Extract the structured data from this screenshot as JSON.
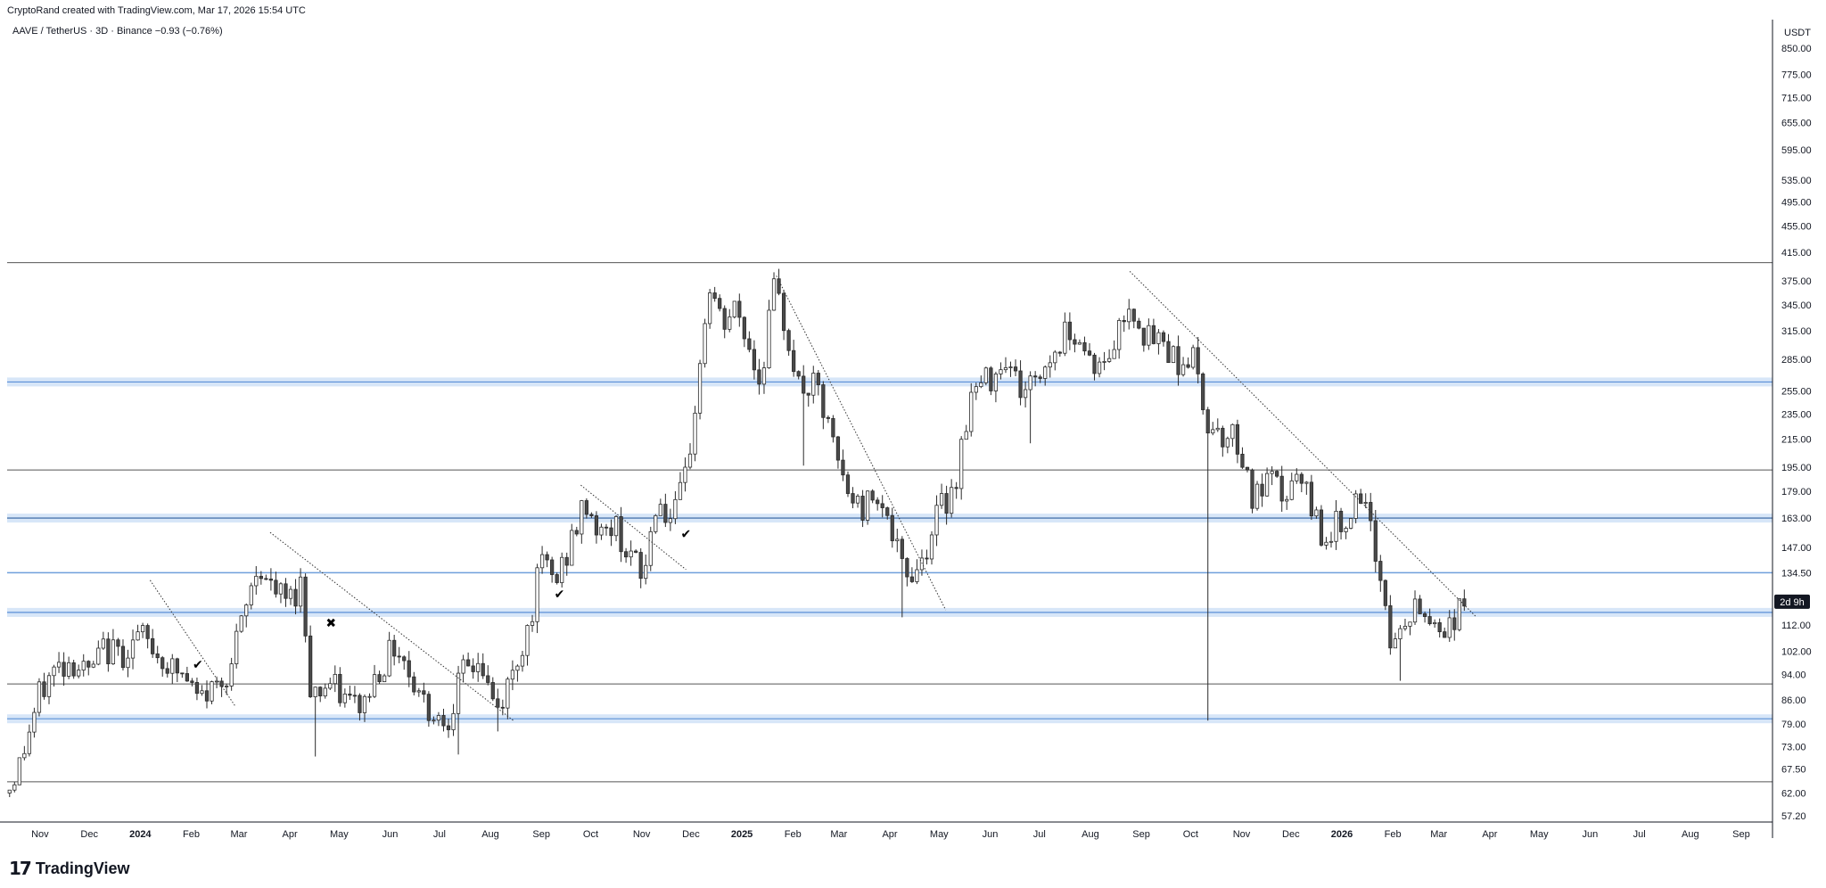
{
  "header": {
    "note": "CryptoRand created with TradingView.com, Mar 17, 2026 15:54 UTC"
  },
  "legend": {
    "text": "AAVE / TetherUS · 3D · Binance  −0.93 (−0.76%)"
  },
  "logo": {
    "mark": "17",
    "text": "TradingView"
  },
  "chart_data": {
    "type": "candlestick",
    "symbol": "AAVE / TetherUS",
    "timeframe": "3D",
    "exchange": "Binance",
    "change": "−0.93 (−0.76%)",
    "currency": "USDT",
    "y_scale": "log",
    "ylim": [
      56,
      940
    ],
    "y_ticks": [
      {
        "value": 850,
        "label": "850.00"
      },
      {
        "value": 775,
        "label": "775.00"
      },
      {
        "value": 715,
        "label": "715.00"
      },
      {
        "value": 655,
        "label": "655.00"
      },
      {
        "value": 595,
        "label": "595.00"
      },
      {
        "value": 535,
        "label": "535.00"
      },
      {
        "value": 495,
        "label": "495.00"
      },
      {
        "value": 455,
        "label": "455.00"
      },
      {
        "value": 415,
        "label": "415.00"
      },
      {
        "value": 375,
        "label": "375.00"
      },
      {
        "value": 345,
        "label": "345.00"
      },
      {
        "value": 315,
        "label": "315.00"
      },
      {
        "value": 285,
        "label": "285.00"
      },
      {
        "value": 255,
        "label": "255.00"
      },
      {
        "value": 235,
        "label": "235.00"
      },
      {
        "value": 215,
        "label": "215.00"
      },
      {
        "value": 195,
        "label": "195.00"
      },
      {
        "value": 179,
        "label": "179.00"
      },
      {
        "value": 163,
        "label": "163.00"
      },
      {
        "value": 147,
        "label": "147.00"
      },
      {
        "value": 134.5,
        "label": "134.50"
      },
      {
        "value": 112,
        "label": "112.00"
      },
      {
        "value": 102,
        "label": "102.00"
      },
      {
        "value": 94,
        "label": "94.00"
      },
      {
        "value": 86,
        "label": "86.00"
      },
      {
        "value": 79,
        "label": "79.00"
      },
      {
        "value": 73,
        "label": "73.00"
      },
      {
        "value": 67.5,
        "label": "67.50"
      },
      {
        "value": 62,
        "label": "62.00"
      },
      {
        "value": 57.2,
        "label": "57.20"
      }
    ],
    "price_tag": {
      "value": 121.5,
      "label": "2d 9h",
      "color": "#131722"
    },
    "x_ticks": [
      {
        "date": "2023-11-01",
        "label": "Nov",
        "year": false
      },
      {
        "date": "2023-12-01",
        "label": "Dec",
        "year": false
      },
      {
        "date": "2024-01-01",
        "label": "2024",
        "year": true
      },
      {
        "date": "2024-02-01",
        "label": "Feb",
        "year": false
      },
      {
        "date": "2024-03-01",
        "label": "Mar",
        "year": false
      },
      {
        "date": "2024-04-01",
        "label": "Apr",
        "year": false
      },
      {
        "date": "2024-05-01",
        "label": "May",
        "year": false
      },
      {
        "date": "2024-06-01",
        "label": "Jun",
        "year": false
      },
      {
        "date": "2024-07-01",
        "label": "Jul",
        "year": false
      },
      {
        "date": "2024-08-01",
        "label": "Aug",
        "year": false
      },
      {
        "date": "2024-09-01",
        "label": "Sep",
        "year": false
      },
      {
        "date": "2024-10-01",
        "label": "Oct",
        "year": false
      },
      {
        "date": "2024-11-01",
        "label": "Nov",
        "year": false
      },
      {
        "date": "2024-12-01",
        "label": "Dec",
        "year": false
      },
      {
        "date": "2025-01-01",
        "label": "2025",
        "year": true
      },
      {
        "date": "2025-02-01",
        "label": "Feb",
        "year": false
      },
      {
        "date": "2025-03-01",
        "label": "Mar",
        "year": false
      },
      {
        "date": "2025-04-01",
        "label": "Apr",
        "year": false
      },
      {
        "date": "2025-05-01",
        "label": "May",
        "year": false
      },
      {
        "date": "2025-06-01",
        "label": "Jun",
        "year": false
      },
      {
        "date": "2025-07-01",
        "label": "Jul",
        "year": false
      },
      {
        "date": "2025-08-01",
        "label": "Aug",
        "year": false
      },
      {
        "date": "2025-09-01",
        "label": "Sep",
        "year": false
      },
      {
        "date": "2025-10-01",
        "label": "Oct",
        "year": false
      },
      {
        "date": "2025-11-01",
        "label": "Nov",
        "year": false
      },
      {
        "date": "2025-12-01",
        "label": "Dec",
        "year": false
      },
      {
        "date": "2026-01-01",
        "label": "2026",
        "year": true
      },
      {
        "date": "2026-02-01",
        "label": "Feb",
        "year": false
      },
      {
        "date": "2026-03-01",
        "label": "Mar",
        "year": false
      },
      {
        "date": "2026-04-01",
        "label": "Apr",
        "year": false
      },
      {
        "date": "2026-05-01",
        "label": "May",
        "year": false
      },
      {
        "date": "2026-06-01",
        "label": "Jun",
        "year": false
      },
      {
        "date": "2026-07-01",
        "label": "Jul",
        "year": false
      },
      {
        "date": "2026-08-01",
        "label": "Aug",
        "year": false
      },
      {
        "date": "2026-09-01",
        "label": "Sep",
        "year": false
      }
    ],
    "x_range": [
      "2023-10-12",
      "2026-09-20"
    ],
    "candle_colors": {
      "up": "#ffffff",
      "down": "#4a4a4a",
      "border": "#2a2a2a"
    },
    "path": [
      [
        "2023-10-12",
        62
      ],
      [
        "2023-10-20",
        69
      ],
      [
        "2023-11-01",
        88
      ],
      [
        "2023-11-10",
        96
      ],
      [
        "2023-11-20",
        99
      ],
      [
        "2023-12-01",
        94
      ],
      [
        "2023-12-10",
        103
      ],
      [
        "2023-12-20",
        101
      ],
      [
        "2024-01-01",
        108
      ],
      [
        "2024-01-10",
        102
      ],
      [
        "2024-01-20",
        96
      ],
      [
        "2024-01-28",
        93
      ],
      [
        "2024-02-05",
        86
      ],
      [
        "2024-02-15",
        90
      ],
      [
        "2024-02-25",
        97
      ],
      [
        "2024-03-05",
        118
      ],
      [
        "2024-03-13",
        140
      ],
      [
        "2024-03-20",
        127
      ],
      [
        "2024-03-31",
        122
      ],
      [
        "2024-04-08",
        130
      ],
      [
        "2024-04-14",
        88
      ],
      [
        "2024-04-25",
        91
      ],
      [
        "2024-05-05",
        86
      ],
      [
        "2024-05-15",
        84
      ],
      [
        "2024-05-25",
        96
      ],
      [
        "2024-06-05",
        105
      ],
      [
        "2024-06-15",
        92
      ],
      [
        "2024-06-25",
        83
      ],
      [
        "2024-07-05",
        80
      ],
      [
        "2024-07-15",
        94
      ],
      [
        "2024-07-25",
        99
      ],
      [
        "2024-08-05",
        82
      ],
      [
        "2024-08-15",
        95
      ],
      [
        "2024-08-25",
        114
      ],
      [
        "2024-09-01",
        140
      ],
      [
        "2024-09-10",
        130
      ],
      [
        "2024-09-20",
        152
      ],
      [
        "2024-09-28",
        172
      ],
      [
        "2024-10-08",
        152
      ],
      [
        "2024-10-15",
        160
      ],
      [
        "2024-10-25",
        143
      ],
      [
        "2024-11-02",
        131
      ],
      [
        "2024-11-10",
        175
      ],
      [
        "2024-11-20",
        160
      ],
      [
        "2024-11-28",
        188
      ],
      [
        "2024-12-05",
        258
      ],
      [
        "2024-12-12",
        370
      ],
      [
        "2024-12-20",
        318
      ],
      [
        "2024-12-28",
        340
      ],
      [
        "2025-01-05",
        300
      ],
      [
        "2025-01-12",
        262
      ],
      [
        "2025-01-20",
        365
      ],
      [
        "2025-01-28",
        318
      ],
      [
        "2025-02-05",
        255
      ],
      [
        "2025-02-15",
        258
      ],
      [
        "2025-02-25",
        212
      ],
      [
        "2025-03-05",
        180
      ],
      [
        "2025-03-15",
        168
      ],
      [
        "2025-03-25",
        182
      ],
      [
        "2025-04-05",
        145
      ],
      [
        "2025-04-10",
        132
      ],
      [
        "2025-04-20",
        140
      ],
      [
        "2025-04-30",
        166
      ],
      [
        "2025-05-10",
        182
      ],
      [
        "2025-05-20",
        250
      ],
      [
        "2025-06-01",
        268
      ],
      [
        "2025-06-10",
        290
      ],
      [
        "2025-06-20",
        255
      ],
      [
        "2025-06-30",
        268
      ],
      [
        "2025-07-10",
        292
      ],
      [
        "2025-07-20",
        322
      ],
      [
        "2025-07-30",
        292
      ],
      [
        "2025-08-08",
        272
      ],
      [
        "2025-08-15",
        300
      ],
      [
        "2025-08-25",
        350
      ],
      [
        "2025-09-05",
        305
      ],
      [
        "2025-09-15",
        302
      ],
      [
        "2025-09-25",
        280
      ],
      [
        "2025-10-02",
        290
      ],
      [
        "2025-10-10",
        232
      ],
      [
        "2025-10-20",
        220
      ],
      [
        "2025-10-30",
        215
      ],
      [
        "2025-11-08",
        172
      ],
      [
        "2025-11-18",
        185
      ],
      [
        "2025-11-28",
        175
      ],
      [
        "2025-12-05",
        188
      ],
      [
        "2025-12-12",
        172
      ],
      [
        "2025-12-22",
        152
      ],
      [
        "2025-12-30",
        160
      ],
      [
        "2026-01-08",
        170
      ],
      [
        "2026-01-15",
        167
      ],
      [
        "2026-01-25",
        132
      ],
      [
        "2026-02-01",
        102
      ],
      [
        "2026-02-08",
        112
      ],
      [
        "2026-02-15",
        118
      ],
      [
        "2026-02-25",
        114
      ],
      [
        "2026-03-05",
        110
      ],
      [
        "2026-03-17",
        121
      ]
    ],
    "spikes": [
      {
        "date": "2025-10-10",
        "low": 80
      },
      {
        "date": "2025-02-05",
        "low": 196
      },
      {
        "date": "2024-04-14",
        "low": 70.5
      },
      {
        "date": "2024-07-10",
        "low": 71
      },
      {
        "date": "2024-08-05",
        "low": 77
      },
      {
        "date": "2025-04-08",
        "low": 115
      },
      {
        "date": "2025-06-25",
        "low": 212
      },
      {
        "date": "2026-02-05",
        "low": 92
      }
    ],
    "support_zones": [
      {
        "value": 263,
        "style": "blue-band"
      },
      {
        "value": 163,
        "style": "blue-band-dark"
      },
      {
        "value": 134.5,
        "style": "blue-line"
      },
      {
        "value": 117,
        "style": "blue-band"
      },
      {
        "value": 80.5,
        "style": "blue-band"
      }
    ],
    "horizontal_lines": [
      {
        "value": 400,
        "color": "#555555"
      },
      {
        "value": 193,
        "color": "#555555"
      },
      {
        "value": 91,
        "color": "#555555"
      },
      {
        "value": 64.5,
        "color": "#555555"
      }
    ],
    "trendlines": [
      {
        "start": [
          "2024-01-07",
          131
        ],
        "end": [
          "2024-02-28",
          84
        ]
      },
      {
        "start": [
          "2024-03-20",
          155
        ],
        "end": [
          "2024-08-15",
          80
        ]
      },
      {
        "start": [
          "2024-09-25",
          183
        ],
        "end": [
          "2024-11-28",
          136
        ]
      },
      {
        "start": [
          "2025-01-22",
          382
        ],
        "end": [
          "2025-05-05",
          118
        ]
      },
      {
        "start": [
          "2025-08-25",
          388
        ],
        "end": [
          "2026-03-24",
          115
        ]
      }
    ],
    "markers": [
      {
        "date": "2024-02-05",
        "value": 96,
        "glyph": "✔"
      },
      {
        "date": "2024-04-26",
        "value": 111,
        "glyph": "✖"
      },
      {
        "date": "2024-09-12",
        "value": 123,
        "glyph": "✔"
      },
      {
        "date": "2024-11-28",
        "value": 152,
        "glyph": "✔"
      }
    ]
  }
}
